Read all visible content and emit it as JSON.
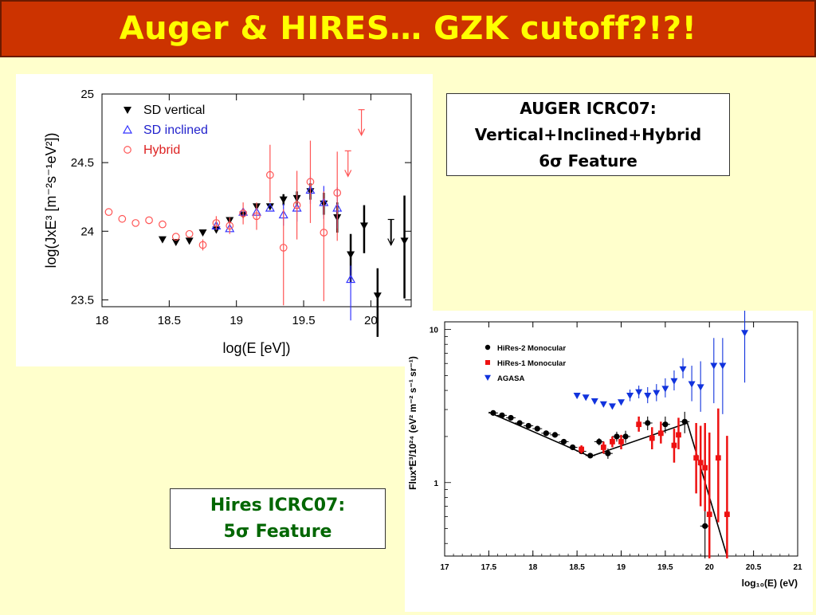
{
  "slide": {
    "title": "Auger & HIRES… GZK cutoff?!?!",
    "background": "#FFFFCC",
    "title_bg": "#CC3300",
    "title_color": "#FFFF00"
  },
  "auger_box": {
    "line1": "AUGER ICRC07:",
    "line2": "Vertical+Inclined+Hybrid",
    "line3": "6σ Feature"
  },
  "hires_box": {
    "line1": "Hires ICRC07:",
    "line2": "5σ Feature"
  },
  "chart_data": [
    {
      "type": "scatter",
      "xlabel": "log(E [eV])",
      "ylabel": "log(JxE³ [m⁻²s⁻¹eV²])",
      "xlim": [
        18,
        20.3
      ],
      "ylim": [
        23.45,
        25
      ],
      "x_ticks": [
        "18",
        "18.5",
        "19",
        "19.5",
        "20"
      ],
      "y_ticks": [
        "23.5",
        "24",
        "24.5",
        "25"
      ],
      "legend_position": "top-left",
      "series": [
        {
          "name": "SD vertical",
          "color": "#000000",
          "marker": "triangle-down-filled",
          "points": [
            {
              "x": 18.45,
              "y": 23.94
            },
            {
              "x": 18.55,
              "y": 23.92
            },
            {
              "x": 18.65,
              "y": 23.93
            },
            {
              "x": 18.75,
              "y": 23.99
            },
            {
              "x": 18.85,
              "y": 24.01
            },
            {
              "x": 18.95,
              "y": 24.08
            },
            {
              "x": 19.05,
              "y": 24.12
            },
            {
              "x": 19.15,
              "y": 24.18
            },
            {
              "x": 19.25,
              "y": 24.18
            },
            {
              "x": 19.35,
              "y": 24.23,
              "err": [
                0.04,
                0.04
              ]
            },
            {
              "x": 19.45,
              "y": 24.24,
              "err": [
                0.05,
                0.05
              ]
            },
            {
              "x": 19.55,
              "y": 24.29,
              "err": [
                0.06,
                0.06
              ]
            },
            {
              "x": 19.65,
              "y": 24.2,
              "err": [
                0.08,
                0.08
              ]
            },
            {
              "x": 19.75,
              "y": 24.1,
              "err": [
                0.11,
                0.11
              ]
            },
            {
              "x": 19.85,
              "y": 23.83,
              "err": [
                0.2,
                0.15
              ]
            },
            {
              "x": 19.95,
              "y": 24.04,
              "err": [
                0.2,
                0.15
              ]
            },
            {
              "x": 20.05,
              "y": 23.53,
              "err": [
                0.3,
                0.2
              ]
            },
            {
              "x": 20.25,
              "y": 23.93,
              "err": [
                0.42,
                0.33
              ]
            }
          ],
          "upper_limits": [
            {
              "x": 20.15,
              "y": 23.9
            }
          ]
        },
        {
          "name": "SD inclined",
          "color": "#3333FF",
          "marker": "triangle-up-open",
          "points": [
            {
              "x": 18.85,
              "y": 24.04
            },
            {
              "x": 18.95,
              "y": 24.02
            },
            {
              "x": 19.05,
              "y": 24.14
            },
            {
              "x": 19.15,
              "y": 24.14
            },
            {
              "x": 19.25,
              "y": 24.17
            },
            {
              "x": 19.35,
              "y": 24.12,
              "err": [
                0.08,
                0.08
              ]
            },
            {
              "x": 19.45,
              "y": 24.17,
              "err": [
                0.1,
                0.1
              ]
            },
            {
              "x": 19.55,
              "y": 24.3,
              "err": [
                0.1,
                0.1
              ]
            },
            {
              "x": 19.65,
              "y": 24.21,
              "err": [
                0.12,
                0.12
              ]
            },
            {
              "x": 19.75,
              "y": 24.17,
              "err": [
                0.15,
                0.15
              ]
            },
            {
              "x": 19.85,
              "y": 23.65,
              "err": [
                0.3,
                0.1
              ]
            }
          ]
        },
        {
          "name": "Hybrid",
          "color": "#FF5555",
          "marker": "circle-open",
          "points": [
            {
              "x": 18.05,
              "y": 24.14
            },
            {
              "x": 18.15,
              "y": 24.09
            },
            {
              "x": 18.25,
              "y": 24.06
            },
            {
              "x": 18.35,
              "y": 24.08
            },
            {
              "x": 18.45,
              "y": 24.05
            },
            {
              "x": 18.55,
              "y": 23.96
            },
            {
              "x": 18.65,
              "y": 23.98
            },
            {
              "x": 18.75,
              "y": 23.9,
              "err": [
                0.04,
                0.04
              ]
            },
            {
              "x": 18.85,
              "y": 24.06,
              "err": [
                0.05,
                0.05
              ]
            },
            {
              "x": 18.95,
              "y": 24.04,
              "err": [
                0.06,
                0.06
              ]
            },
            {
              "x": 19.05,
              "y": 24.13,
              "err": [
                0.08,
                0.08
              ]
            },
            {
              "x": 19.15,
              "y": 24.11,
              "err": [
                0.1,
                0.1
              ]
            },
            {
              "x": 19.25,
              "y": 24.41,
              "err": [
                0.2,
                0.22
              ]
            },
            {
              "x": 19.35,
              "y": 23.88,
              "err": [
                0.42,
                0.28
              ]
            },
            {
              "x": 19.45,
              "y": 24.19,
              "err": [
                0.25,
                0.25
              ]
            },
            {
              "x": 19.55,
              "y": 24.36,
              "err": [
                0.3,
                0.3
              ]
            },
            {
              "x": 19.65,
              "y": 23.99,
              "err": [
                0.5,
                0.3
              ]
            },
            {
              "x": 19.75,
              "y": 24.28,
              "err": [
                0.35,
                0.3
              ]
            }
          ],
          "upper_limits": [
            {
              "x": 19.83,
              "y": 24.4
            },
            {
              "x": 19.93,
              "y": 24.7
            }
          ]
        }
      ]
    },
    {
      "type": "scatter",
      "xlabel": "log₁₀(E) (eV)",
      "ylabel": "Flux*E³/10²⁴ (eV² m⁻² s⁻¹ sr⁻¹)",
      "xlim": [
        17,
        21
      ],
      "ylim_log10": [
        -0.48,
        1.05
      ],
      "x_ticks": [
        "17",
        "17.5",
        "18",
        "18.5",
        "19",
        "19.5",
        "20",
        "20.5",
        "21"
      ],
      "y_ticks": [
        {
          "label": "1",
          "value": 1
        },
        {
          "label": "10",
          "value": 10
        }
      ],
      "legend_position": "top-left",
      "series": [
        {
          "name": "HiRes-2 Monocular",
          "color": "#000000",
          "marker": "circle-filled",
          "points": [
            {
              "x": 17.55,
              "y": 2.85
            },
            {
              "x": 17.65,
              "y": 2.75
            },
            {
              "x": 17.75,
              "y": 2.65
            },
            {
              "x": 17.85,
              "y": 2.45
            },
            {
              "x": 17.95,
              "y": 2.35
            },
            {
              "x": 18.05,
              "y": 2.25
            },
            {
              "x": 18.15,
              "y": 2.1
            },
            {
              "x": 18.25,
              "y": 2.05
            },
            {
              "x": 18.35,
              "y": 1.85
            },
            {
              "x": 18.45,
              "y": 1.7
            },
            {
              "x": 18.55,
              "y": 1.6
            },
            {
              "x": 18.65,
              "y": 1.5
            },
            {
              "x": 18.75,
              "y": 1.85,
              "err": [
                0.1,
                0.1
              ]
            },
            {
              "x": 18.85,
              "y": 1.55,
              "err": [
                0.12,
                0.12
              ]
            },
            {
              "x": 18.95,
              "y": 2.0,
              "err": [
                0.15,
                0.15
              ]
            },
            {
              "x": 19.05,
              "y": 2.0,
              "err": [
                0.18,
                0.18
              ]
            },
            {
              "x": 19.3,
              "y": 2.45,
              "err": [
                0.25,
                0.25
              ]
            },
            {
              "x": 19.5,
              "y": 2.4,
              "err": [
                0.3,
                0.3
              ]
            },
            {
              "x": 19.72,
              "y": 2.5,
              "err": [
                0.4,
                0.4
              ]
            },
            {
              "x": 19.95,
              "y": 0.52,
              "err": [
                0.2,
                1.2
              ]
            }
          ]
        },
        {
          "name": "HiRes-1 Monocular",
          "color": "#EE1111",
          "marker": "square-filled",
          "points": [
            {
              "x": 18.55,
              "y": 1.65,
              "err": [
                0.1,
                0.1
              ]
            },
            {
              "x": 18.8,
              "y": 1.7,
              "err": [
                0.15,
                0.15
              ]
            },
            {
              "x": 18.9,
              "y": 1.85,
              "err": [
                0.15,
                0.15
              ]
            },
            {
              "x": 19.0,
              "y": 1.85,
              "err": [
                0.2,
                0.2
              ]
            },
            {
              "x": 19.2,
              "y": 2.4,
              "err": [
                0.25,
                0.3
              ]
            },
            {
              "x": 19.35,
              "y": 1.95,
              "err": [
                0.3,
                0.35
              ]
            },
            {
              "x": 19.45,
              "y": 2.1,
              "err": [
                0.3,
                0.4
              ]
            },
            {
              "x": 19.6,
              "y": 1.75,
              "err": [
                0.4,
                0.5
              ]
            },
            {
              "x": 19.65,
              "y": 2.05,
              "err": [
                0.4,
                0.6
              ]
            },
            {
              "x": 19.85,
              "y": 1.45,
              "err": [
                0.6,
                1.0
              ]
            },
            {
              "x": 19.9,
              "y": 1.35,
              "err": [
                0.65,
                1.0
              ]
            },
            {
              "x": 19.95,
              "y": 1.25,
              "err": [
                0.6,
                1.2
              ]
            },
            {
              "x": 20.0,
              "y": 0.62,
              "err": [
                0.3,
                1.5
              ]
            },
            {
              "x": 20.1,
              "y": 1.45,
              "err": [
                0.9,
                1.6
              ]
            },
            {
              "x": 20.2,
              "y": 0.62,
              "err": [
                0.3,
                1.4
              ]
            }
          ]
        },
        {
          "name": "AGASA",
          "color": "#1133DD",
          "marker": "triangle-down-filled",
          "points": [
            {
              "x": 18.5,
              "y": 3.7
            },
            {
              "x": 18.6,
              "y": 3.6
            },
            {
              "x": 18.7,
              "y": 3.4
            },
            {
              "x": 18.8,
              "y": 3.25
            },
            {
              "x": 18.9,
              "y": 3.15
            },
            {
              "x": 19.0,
              "y": 3.35
            },
            {
              "x": 19.1,
              "y": 3.7,
              "err": [
                0.3,
                0.35
              ]
            },
            {
              "x": 19.2,
              "y": 3.9,
              "err": [
                0.35,
                0.4
              ]
            },
            {
              "x": 19.3,
              "y": 3.7,
              "err": [
                0.4,
                0.5
              ]
            },
            {
              "x": 19.4,
              "y": 3.85,
              "err": [
                0.45,
                0.55
              ]
            },
            {
              "x": 19.5,
              "y": 4.1,
              "err": [
                0.5,
                0.7
              ]
            },
            {
              "x": 19.6,
              "y": 4.6,
              "err": [
                0.6,
                0.8
              ]
            },
            {
              "x": 19.7,
              "y": 5.5,
              "err": [
                0.7,
                1.0
              ]
            },
            {
              "x": 19.8,
              "y": 4.4,
              "err": [
                1.0,
                1.4
              ]
            },
            {
              "x": 19.9,
              "y": 4.2,
              "err": [
                1.3,
                2.0
              ]
            },
            {
              "x": 20.05,
              "y": 5.8,
              "err": [
                2.5,
                3.0
              ]
            },
            {
              "x": 20.15,
              "y": 5.8,
              "err": [
                3.0,
                3.0
              ]
            },
            {
              "x": 20.4,
              "y": 9.5,
              "err": [
                5.0,
                5.0
              ]
            }
          ]
        }
      ],
      "fit_line": [
        {
          "x": 17.5,
          "y": 2.88
        },
        {
          "x": 18.65,
          "y": 1.48
        },
        {
          "x": 19.75,
          "y": 2.45
        },
        {
          "x": 20.2,
          "y": 0.33
        }
      ]
    }
  ]
}
